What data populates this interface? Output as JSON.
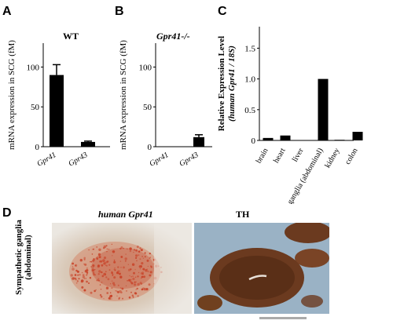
{
  "figure": {
    "panels": [
      {
        "letter": "A",
        "title": "WT",
        "ylabel": "mRNA expression in SCG (fM)"
      },
      {
        "letter": "B",
        "title": "Gpr41-/-",
        "ylabel": "mRNA expression in SCG (fM)"
      },
      {
        "letter": "C",
        "ylabel_line1": "Relative Expression Level",
        "ylabel_line2": "(human Gpr41 / 18S)"
      },
      {
        "letter": "D",
        "label_left": "human Gpr41",
        "label_right": "TH",
        "side_line1": "Sympathetic ganglia",
        "side_line2": "(abdominal)"
      }
    ]
  },
  "chart_data": [
    {
      "type": "bar",
      "title": "WT",
      "categories": [
        "Gpr41",
        "Gpr43"
      ],
      "values": [
        90,
        6
      ],
      "errors": [
        13,
        1
      ],
      "ylabel": "mRNA expression in SCG (fM)",
      "ylim": [
        0,
        130
      ],
      "yticks": [
        0,
        50,
        100
      ]
    },
    {
      "type": "bar",
      "title": "Gpr41-/-",
      "categories": [
        "Gpr41",
        "Gpr43"
      ],
      "values": [
        0,
        12
      ],
      "errors": [
        0,
        3
      ],
      "ylabel": "mRNA expression in SCG (fM)",
      "ylim": [
        0,
        130
      ],
      "yticks": [
        0,
        50,
        100
      ]
    },
    {
      "type": "bar",
      "categories": [
        "brain",
        "heart",
        "liver",
        "sympathetic ganglia (abdominal)",
        "kidney",
        "colon"
      ],
      "values": [
        0.04,
        0.08,
        0.0,
        1.0,
        0.01,
        0.14
      ],
      "ylabel": "Relative Expression Level (human Gpr41 / 18S)",
      "ylim": [
        0,
        1.85
      ],
      "yticks": [
        0,
        0.5,
        1.0,
        1.5
      ]
    }
  ],
  "colors": {
    "bar": "#000000",
    "tissue_bg": "#e9e4dc",
    "stain_red": "#c8442a",
    "th_brown": "#6b3a1f",
    "counterstain_blue": "#7a9ab5",
    "scale_bar": "#aaaaaa"
  }
}
